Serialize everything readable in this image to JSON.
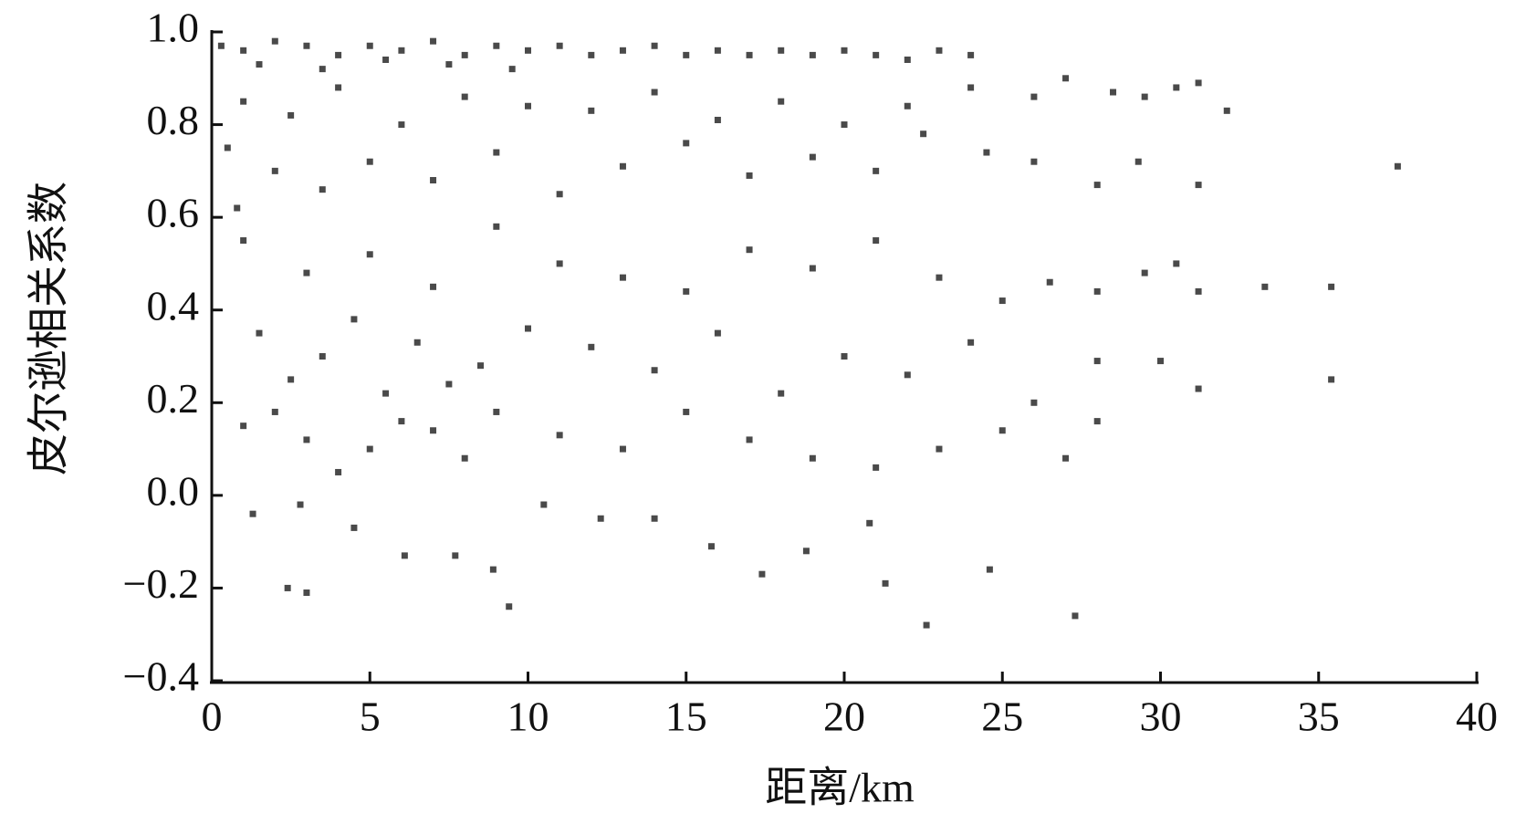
{
  "chart_data": {
    "type": "scatter",
    "xlabel": "距离/km",
    "ylabel": "皮尔逊相关系数",
    "color": "#4a4a4a",
    "xlim": [
      0,
      40
    ],
    "xticks": [
      0,
      5,
      10,
      15,
      20,
      25,
      30,
      35,
      40
    ],
    "ylim": [
      -0.4,
      1.0
    ],
    "yticks": [
      {
        "value": -0.4,
        "label": "−0.4"
      },
      {
        "value": -0.2,
        "label": "−0.2"
      },
      {
        "value": 0,
        "label": "0.0"
      },
      0.2,
      0.4,
      0.6,
      0.8,
      {
        "value": 1,
        "label": "1.0"
      }
    ],
    "x": [
      0.3,
      1,
      2,
      3,
      4,
      5,
      6,
      7,
      8,
      9,
      10,
      11,
      12,
      13,
      14,
      15,
      16,
      17,
      18,
      19,
      20,
      21,
      22,
      23,
      24,
      1.5,
      3.5,
      5.5,
      7.5,
      9.5,
      1,
      2.5,
      4,
      6,
      8,
      10,
      12,
      14,
      16,
      18,
      20,
      22,
      24,
      26,
      27,
      28.5,
      29.5,
      30.5,
      31.2,
      32.1,
      0.5,
      2,
      3.5,
      5,
      7,
      9,
      11,
      13,
      15,
      17,
      19,
      21,
      22.5,
      24.5,
      26,
      28,
      29.3,
      31.2,
      37.5,
      0.8,
      1,
      3,
      5,
      7,
      9,
      11,
      13,
      15,
      17,
      19,
      21,
      23,
      25,
      26.5,
      28,
      29.5,
      30.5,
      31.2,
      33.3,
      35.4,
      1.5,
      2.5,
      3.5,
      4.5,
      5.5,
      6.5,
      7.5,
      8.5,
      10,
      12,
      14,
      16,
      18,
      20,
      22,
      24,
      26,
      28,
      30,
      35.4,
      1,
      2,
      3,
      4,
      5,
      6,
      7,
      8,
      9,
      11,
      13,
      15,
      17,
      19,
      21,
      23,
      25,
      27,
      28,
      31.2,
      1.3,
      2.8,
      4.5,
      6.1,
      7.7,
      9.4,
      12.3,
      15.8,
      17.4,
      21.3,
      2.4,
      3.0,
      8.9,
      10.5,
      14.0,
      18.8,
      20.8,
      22.6,
      24.6,
      27.3
    ],
    "values": [
      0.97,
      0.96,
      0.98,
      0.97,
      0.95,
      0.97,
      0.96,
      0.98,
      0.95,
      0.97,
      0.96,
      0.97,
      0.95,
      0.96,
      0.97,
      0.95,
      0.96,
      0.95,
      0.96,
      0.95,
      0.96,
      0.95,
      0.94,
      0.96,
      0.95,
      0.93,
      0.92,
      0.94,
      0.93,
      0.92,
      0.85,
      0.82,
      0.88,
      0.8,
      0.86,
      0.84,
      0.83,
      0.87,
      0.81,
      0.85,
      0.8,
      0.84,
      0.88,
      0.86,
      0.9,
      0.87,
      0.86,
      0.88,
      0.89,
      0.83,
      0.75,
      0.7,
      0.66,
      0.72,
      0.68,
      0.74,
      0.65,
      0.71,
      0.76,
      0.69,
      0.73,
      0.7,
      0.78,
      0.74,
      0.72,
      0.67,
      0.72,
      0.67,
      0.71,
      0.62,
      0.55,
      0.48,
      0.52,
      0.45,
      0.58,
      0.5,
      0.47,
      0.44,
      0.53,
      0.49,
      0.55,
      0.47,
      0.42,
      0.46,
      0.44,
      0.48,
      0.5,
      0.44,
      0.45,
      0.45,
      0.35,
      0.25,
      0.3,
      0.38,
      0.22,
      0.33,
      0.24,
      0.28,
      0.36,
      0.32,
      0.27,
      0.35,
      0.22,
      0.3,
      0.26,
      0.33,
      0.2,
      0.29,
      0.29,
      0.25,
      0.15,
      0.18,
      0.12,
      0.05,
      0.1,
      0.16,
      0.14,
      0.08,
      0.18,
      0.13,
      0.1,
      0.18,
      0.12,
      0.08,
      0.06,
      0.1,
      0.14,
      0.08,
      0.16,
      0.23,
      -0.04,
      -0.02,
      -0.07,
      -0.13,
      -0.13,
      -0.24,
      -0.05,
      -0.11,
      -0.17,
      -0.19,
      -0.2,
      -0.21,
      -0.16,
      -0.02,
      -0.05,
      -0.12,
      -0.06,
      -0.28,
      -0.16,
      -0.26
    ]
  }
}
